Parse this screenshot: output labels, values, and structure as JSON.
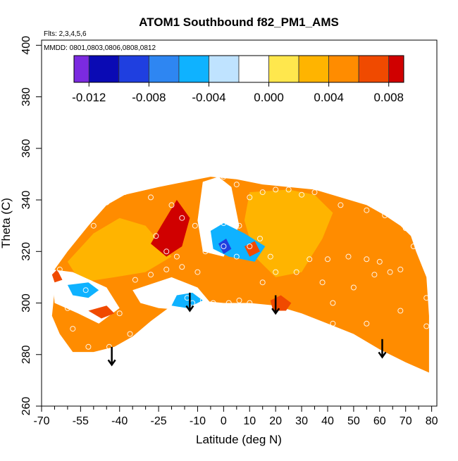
{
  "chart_data": {
    "type": "heatmap",
    "title": "ATOM1 Southbound f82_PM1_AMS",
    "flights_note": "Flts: 2,3,4,5,6",
    "dates_note": "MMDD: 0801,0803,0806,0808,0812",
    "xlabel": "Latitude (deg N)",
    "ylabel": "Theta (C)",
    "xlim": [
      -70,
      82
    ],
    "ylim": [
      260,
      402
    ],
    "x_major_ticks": [
      -70,
      -55,
      -40,
      -25,
      -10,
      0,
      10,
      20,
      30,
      40,
      50,
      60,
      70,
      80
    ],
    "x_major_labels": [
      "-70",
      "-55",
      "-40",
      "-25",
      "-10",
      "0",
      "10",
      "20",
      "30",
      "40",
      "50",
      "60",
      "70",
      "80"
    ],
    "x_minor_ticks": [
      -65,
      -60,
      -50,
      -45,
      -35,
      -30,
      -20,
      -15,
      -5,
      5,
      15,
      25,
      35,
      45,
      55,
      65,
      75
    ],
    "y_ticks": [
      260,
      280,
      300,
      320,
      340,
      360,
      380,
      400
    ],
    "y_tick_labels": [
      "260",
      "280",
      "300",
      "320",
      "340",
      "360",
      "380",
      "400"
    ],
    "colorbar": {
      "breaks": [
        -0.013,
        -0.012,
        -0.01,
        -0.008,
        -0.006,
        -0.004,
        -0.002,
        0.0,
        0.002,
        0.004,
        0.006,
        0.008,
        0.009
      ],
      "colors": [
        "#7b2ae0",
        "#0a0ab4",
        "#1f3fe0",
        "#2e86f2",
        "#0fb2ff",
        "#bfe3ff",
        "#ffffff",
        "#ffe74d",
        "#ffb400",
        "#ff8c00",
        "#f04a00",
        "#d00000",
        "#a01010"
      ],
      "labels": [
        "-0.012",
        "-0.008",
        "-0.004",
        "0.000",
        "0.004",
        "0.008"
      ],
      "label_values": [
        -0.012,
        -0.008,
        -0.004,
        0.0,
        0.004,
        0.008
      ]
    },
    "regions": [
      {
        "name": "region-base-orange",
        "value": 0.004,
        "polygon": [
          [
            -65,
            313
          ],
          [
            -60,
            320
          ],
          [
            -52,
            330
          ],
          [
            -45,
            338
          ],
          [
            -38,
            342
          ],
          [
            -25,
            345
          ],
          [
            -15,
            347
          ],
          [
            -5,
            349
          ],
          [
            5,
            348
          ],
          [
            15,
            346
          ],
          [
            25,
            345
          ],
          [
            35,
            344
          ],
          [
            45,
            341
          ],
          [
            55,
            338
          ],
          [
            62,
            334
          ],
          [
            68,
            330
          ],
          [
            72,
            326
          ],
          [
            74,
            320
          ],
          [
            78,
            310
          ],
          [
            79,
            295
          ],
          [
            79,
            285
          ],
          [
            79,
            273
          ],
          [
            70,
            277
          ],
          [
            60,
            282
          ],
          [
            50,
            288
          ],
          [
            40,
            292
          ],
          [
            30,
            296
          ],
          [
            20,
            299
          ],
          [
            10,
            300
          ],
          [
            0,
            300
          ],
          [
            -10,
            301
          ],
          [
            -20,
            299
          ],
          [
            -28,
            293
          ],
          [
            -35,
            287
          ],
          [
            -42,
            283
          ],
          [
            -50,
            281
          ],
          [
            -58,
            281
          ],
          [
            -63,
            288
          ],
          [
            -66,
            295
          ],
          [
            -65,
            305
          ]
        ]
      },
      {
        "name": "region-yellow-south",
        "value": 0.002,
        "polygon": [
          [
            -60,
            316
          ],
          [
            -50,
            327
          ],
          [
            -40,
            333
          ],
          [
            -30,
            330
          ],
          [
            -20,
            318
          ],
          [
            -30,
            312
          ],
          [
            -42,
            310
          ],
          [
            -55,
            308
          ]
        ]
      },
      {
        "name": "region-red-peak",
        "value": 0.008,
        "polygon": [
          [
            -28,
            323
          ],
          [
            -24,
            330
          ],
          [
            -18,
            340
          ],
          [
            -13,
            333
          ],
          [
            -16,
            322
          ],
          [
            -22,
            318
          ]
        ]
      },
      {
        "name": "region-darkred-core",
        "value": 0.0085,
        "polygon": [
          [
            -24,
            325
          ],
          [
            -20,
            334
          ],
          [
            -17,
            336
          ],
          [
            -16,
            327
          ],
          [
            -20,
            322
          ]
        ]
      },
      {
        "name": "region-yellow-north",
        "value": 0.002,
        "polygon": [
          [
            10,
            343
          ],
          [
            25,
            344
          ],
          [
            35,
            342
          ],
          [
            42,
            335
          ],
          [
            38,
            325
          ],
          [
            30,
            312
          ],
          [
            20,
            310
          ],
          [
            12,
            318
          ],
          [
            8,
            332
          ]
        ]
      },
      {
        "name": "region-lightblue-mid",
        "value": -0.002,
        "polygon": [
          [
            -8,
            347
          ],
          [
            -2,
            349
          ],
          [
            3,
            345
          ],
          [
            6,
            330
          ],
          [
            0,
            318
          ],
          [
            -8,
            320
          ],
          [
            -10,
            332
          ]
        ]
      },
      {
        "name": "region-blue-center",
        "value": -0.005,
        "polygon": [
          [
            -5,
            328
          ],
          [
            0,
            331
          ],
          [
            8,
            327
          ],
          [
            16,
            322
          ],
          [
            12,
            316
          ],
          [
            2,
            318
          ],
          [
            -4,
            321
          ]
        ]
      },
      {
        "name": "region-darkblue-center",
        "value": -0.01,
        "polygon": [
          [
            -2,
            323
          ],
          [
            1,
            325
          ],
          [
            3,
            321
          ],
          [
            0,
            319
          ]
        ]
      },
      {
        "name": "region-red-center",
        "value": 0.006,
        "polygon": [
          [
            8,
            322
          ],
          [
            12,
            324
          ],
          [
            14,
            320
          ],
          [
            10,
            318
          ]
        ]
      },
      {
        "name": "region-lightblue-south",
        "value": -0.002,
        "polygon": [
          [
            -66,
            313
          ],
          [
            -58,
            312
          ],
          [
            -45,
            306
          ],
          [
            -40,
            298
          ],
          [
            -48,
            292
          ],
          [
            -56,
            296
          ],
          [
            -65,
            300
          ]
        ]
      },
      {
        "name": "region-blue-south",
        "value": -0.005,
        "polygon": [
          [
            -60,
            307
          ],
          [
            -52,
            308
          ],
          [
            -48,
            305
          ],
          [
            -52,
            302
          ],
          [
            -58,
            303
          ]
        ]
      },
      {
        "name": "region-lightblue-trough",
        "value": -0.002,
        "polygon": [
          [
            -35,
            305
          ],
          [
            -20,
            310
          ],
          [
            -10,
            306
          ],
          [
            -5,
            300
          ],
          [
            -12,
            297
          ],
          [
            -25,
            298
          ],
          [
            -32,
            300
          ]
        ]
      },
      {
        "name": "region-blue-trough",
        "value": -0.005,
        "polygon": [
          [
            -18,
            303
          ],
          [
            -12,
            304
          ],
          [
            -8,
            301
          ],
          [
            -14,
            298
          ],
          [
            -20,
            299
          ]
        ]
      },
      {
        "name": "region-red-edge-south",
        "value": 0.007,
        "polygon": [
          [
            -66,
            311
          ],
          [
            -64,
            313
          ],
          [
            -62,
            309
          ],
          [
            -65,
            308
          ]
        ]
      },
      {
        "name": "region-red-low-south",
        "value": 0.006,
        "polygon": [
          [
            -52,
            297
          ],
          [
            -45,
            299
          ],
          [
            -42,
            296
          ],
          [
            -47,
            294
          ]
        ]
      },
      {
        "name": "region-red-equator",
        "value": 0.007,
        "polygon": [
          [
            18,
            301
          ],
          [
            22,
            303
          ],
          [
            26,
            300
          ],
          [
            24,
            297
          ],
          [
            19,
            297
          ]
        ]
      }
    ],
    "observation_points": [
      [
        -63,
        313
      ],
      [
        -58,
        309
      ],
      [
        -53,
        305
      ],
      [
        -48,
        303
      ],
      [
        -44,
        300
      ],
      [
        -40,
        296
      ],
      [
        -36,
        288
      ],
      [
        -30,
        287
      ],
      [
        -44,
        283
      ],
      [
        -58,
        290
      ],
      [
        -52,
        283
      ],
      [
        -60,
        298
      ],
      [
        -34,
        309
      ],
      [
        -28,
        311
      ],
      [
        -22,
        313
      ],
      [
        -16,
        314
      ],
      [
        -10,
        312
      ],
      [
        -22,
        305
      ],
      [
        -14,
        302
      ],
      [
        -12,
        300
      ],
      [
        -50,
        330
      ],
      [
        -45,
        339
      ],
      [
        -38,
        343
      ],
      [
        -28,
        341
      ],
      [
        -20,
        338
      ],
      [
        -16,
        333
      ],
      [
        -11,
        330
      ],
      [
        -18,
        318
      ],
      [
        -22,
        320
      ],
      [
        -26,
        326
      ],
      [
        -7,
        320
      ],
      [
        0,
        322
      ],
      [
        5,
        318
      ],
      [
        10,
        322
      ],
      [
        14,
        325
      ],
      [
        18,
        318
      ],
      [
        6,
        330
      ],
      [
        0,
        331
      ],
      [
        -3,
        335
      ],
      [
        -5,
        345
      ],
      [
        0,
        349
      ],
      [
        5,
        346
      ],
      [
        10,
        341
      ],
      [
        15,
        343
      ],
      [
        20,
        344
      ],
      [
        25,
        344
      ],
      [
        30,
        342
      ],
      [
        35,
        343
      ],
      [
        45,
        338
      ],
      [
        55,
        336
      ],
      [
        62,
        334
      ],
      [
        70,
        329
      ],
      [
        75,
        332
      ],
      [
        73,
        322
      ],
      [
        68,
        313
      ],
      [
        60,
        316
      ],
      [
        55,
        317
      ],
      [
        48,
        318
      ],
      [
        40,
        317
      ],
      [
        33,
        317
      ],
      [
        28,
        312
      ],
      [
        20,
        312
      ],
      [
        15,
        308
      ],
      [
        10,
        300
      ],
      [
        6,
        301
      ],
      [
        2,
        300
      ],
      [
        -4,
        300
      ],
      [
        -8,
        301
      ],
      [
        42,
        300
      ],
      [
        38,
        308
      ],
      [
        50,
        306
      ],
      [
        58,
        311
      ],
      [
        64,
        312
      ],
      [
        42,
        292
      ],
      [
        55,
        292
      ],
      [
        68,
        297
      ],
      [
        78,
        302
      ],
      [
        78,
        291
      ]
    ],
    "arrows": [
      {
        "x": -43,
        "y_from": 283,
        "y_to": 276
      },
      {
        "x": -13,
        "y_from": 304,
        "y_to": 297
      },
      {
        "x": 20,
        "y_from": 303,
        "y_to": 296
      },
      {
        "x": 61,
        "y_from": 286,
        "y_to": 279
      }
    ]
  }
}
